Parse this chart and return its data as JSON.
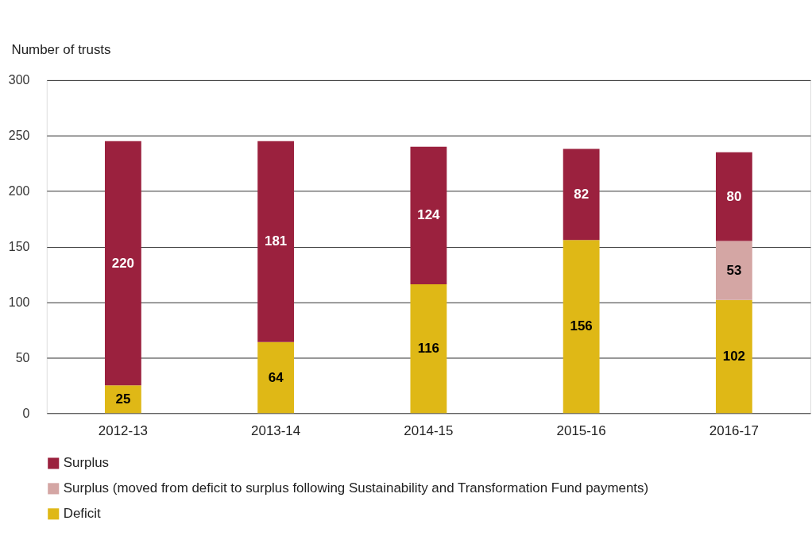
{
  "chart_data": {
    "type": "bar",
    "stacked": true,
    "ylabel": "Number of trusts",
    "categories": [
      "2012-13",
      "2013-14",
      "2014-15",
      "2015-16",
      "2016-17"
    ],
    "series": [
      {
        "name": "Deficit",
        "color": "#dfb816",
        "values": [
          25,
          64,
          116,
          156,
          102
        ]
      },
      {
        "name": "Surplus (moved from deficit to surplus following Sustainability and Transformation Fund payments)",
        "color": "#d4a6a4",
        "values": [
          null,
          null,
          null,
          null,
          53
        ]
      },
      {
        "name": "Surplus",
        "color": "#9b213e",
        "values": [
          220,
          181,
          124,
          82,
          80
        ]
      }
    ],
    "ylim": [
      0,
      300
    ],
    "yticks": [
      0,
      50,
      100,
      150,
      200,
      250,
      300
    ],
    "grid": "y",
    "legend": "bottom left",
    "data_labels": true
  }
}
